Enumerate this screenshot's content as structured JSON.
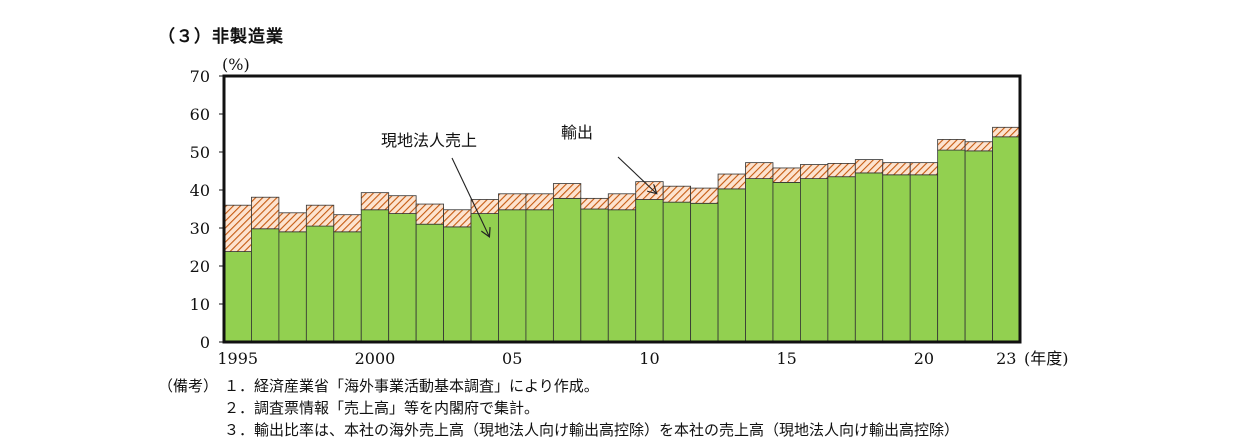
{
  "section_title": "（３）非製造業",
  "chart_data": {
    "type": "bar",
    "stacked": true,
    "ylabel": "(%)",
    "xlabel": "(年度)",
    "ylim": [
      0,
      70
    ],
    "yticks": [
      0,
      10,
      20,
      30,
      40,
      50,
      60,
      70
    ],
    "categories": [
      "1995",
      "1996",
      "1997",
      "1998",
      "1999",
      "2000",
      "2001",
      "2002",
      "2003",
      "2004",
      "2005",
      "2006",
      "2007",
      "2008",
      "2009",
      "2010",
      "2011",
      "2012",
      "2013",
      "2014",
      "2015",
      "2016",
      "2017",
      "2018",
      "2019",
      "2020",
      "2021",
      "2022",
      "2023"
    ],
    "xtick_labels": [
      {
        "index": 0,
        "label": "1995"
      },
      {
        "index": 5,
        "label": "2000"
      },
      {
        "index": 10,
        "label": "05"
      },
      {
        "index": 15,
        "label": "10"
      },
      {
        "index": 20,
        "label": "15"
      },
      {
        "index": 25,
        "label": "20"
      },
      {
        "index": 28,
        "label": "23"
      }
    ],
    "series": [
      {
        "name": "現地法人売上",
        "color": "#92d050",
        "values": [
          23.8,
          29.8,
          29.0,
          30.5,
          29.0,
          34.8,
          33.8,
          31.0,
          30.3,
          33.8,
          34.8,
          34.8,
          37.8,
          35.0,
          34.8,
          37.5,
          36.8,
          36.5,
          40.3,
          43.0,
          42.0,
          43.0,
          43.5,
          44.5,
          44.0,
          44.0,
          50.5,
          50.3,
          54.0
        ]
      },
      {
        "name": "輸出",
        "color": "#f4b183",
        "hatch_color": "#c55a11",
        "values": [
          12.2,
          8.3,
          5.0,
          5.5,
          4.5,
          4.5,
          4.7,
          5.3,
          4.5,
          3.7,
          4.2,
          4.2,
          3.9,
          2.8,
          4.2,
          4.7,
          4.2,
          4.0,
          3.9,
          4.2,
          3.8,
          3.7,
          3.5,
          3.5,
          3.2,
          3.2,
          2.8,
          2.4,
          2.5
        ]
      }
    ],
    "annotations": [
      {
        "text": "現地法人売上",
        "arrow_to_index": 9
      },
      {
        "text": "輸出",
        "arrow_to_index": 15
      }
    ]
  },
  "notes": [
    {
      "head": "（備考）",
      "text": "１．経済産業省「海外事業活動基本調査」により作成。"
    },
    {
      "head": "",
      "text": "２．調査票情報「売上高」等を内閣府で集計。"
    },
    {
      "head": "",
      "text": "３．輸出比率は、本社の海外売上高（現地法人向け輸出高控除）を本社の売上高（現地法人向け輸出高控除）"
    }
  ]
}
